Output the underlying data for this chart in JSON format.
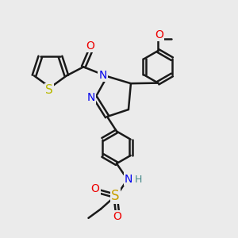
{
  "bg_color": "#ebebeb",
  "bond_color": "#1a1a1a",
  "bond_width": 1.8,
  "atom_colors": {
    "S_thiophene": "#b8b800",
    "S_sulfonamide": "#c8a000",
    "N": "#0000ee",
    "O": "#ee0000",
    "H": "#448888",
    "C": "#1a1a1a"
  },
  "font_size": 10,
  "figsize": [
    3.0,
    3.0
  ],
  "dpi": 100
}
